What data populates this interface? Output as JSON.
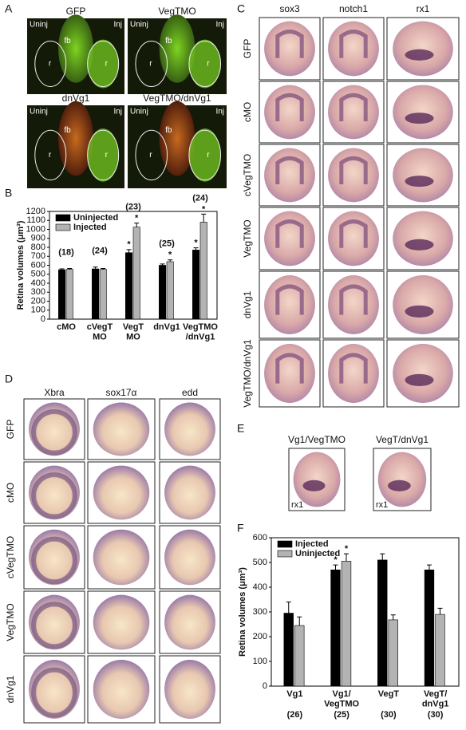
{
  "panel_labels": [
    "A",
    "B",
    "C",
    "D",
    "E",
    "F"
  ],
  "panel_a": {
    "titles": [
      "GFP",
      "VegTMO",
      "dnVg1",
      "VegTMO/dnVg1"
    ],
    "uninj": "Uninj",
    "inj": "Inj",
    "fb": "fb",
    "r": "r"
  },
  "panel_c": {
    "columns": [
      "sox3",
      "notch1",
      "rx1"
    ],
    "rows": [
      "GFP",
      "cMO",
      "cVegTMO",
      "VegTMO",
      "dnVg1",
      "VegTMO/dnVg1"
    ]
  },
  "panel_d": {
    "columns": [
      "Xbra",
      "sox17α",
      "edd"
    ],
    "rows": [
      "GFP",
      "cMO",
      "cVegTMO",
      "VegTMO",
      "dnVg1"
    ]
  },
  "panel_e": {
    "titles": [
      "Vg1/VegTMO",
      "VegT/dnVg1"
    ],
    "marker": "rx1"
  },
  "chart_data": [
    {
      "type": "bar",
      "ylabel": "Retina volumes (μm³)",
      "categories": [
        "cMO",
        "cVegT\nMO",
        "VegT\nMO",
        "dnVg1",
        "VegTMO\n/dnVg1"
      ],
      "counts": [
        "(18)",
        "(24)",
        "(23)",
        "(25)",
        "(24)"
      ],
      "series": [
        {
          "name": "Uninjected",
          "color": "#000000",
          "values": [
            550,
            560,
            740,
            600,
            770
          ],
          "errors": [
            10,
            20,
            35,
            15,
            25
          ],
          "stars": [
            null,
            null,
            "*",
            null,
            "*"
          ]
        },
        {
          "name": "Injected",
          "color": "#b3b3b3",
          "values": [
            555,
            555,
            1025,
            640,
            1080
          ],
          "errors": [
            10,
            10,
            45,
            20,
            90
          ],
          "stars": [
            null,
            null,
            "*",
            "*",
            "*"
          ]
        }
      ],
      "ylim": [
        0,
        1200
      ],
      "yticks": [
        0,
        100,
        200,
        300,
        400,
        500,
        600,
        700,
        800,
        900,
        1000,
        1100,
        1200
      ],
      "legend": "upper left"
    },
    {
      "type": "bar",
      "ylabel": "Retina volumes (μm³)",
      "categories": [
        "Vg1",
        "Vg1/\nVegTMO",
        "VegT",
        "VegT/\ndnVg1"
      ],
      "counts": [
        "(26)",
        "(25)",
        "(30)",
        "(30)"
      ],
      "series": [
        {
          "name": "Injected",
          "color": "#000000",
          "values": [
            295,
            470,
            510,
            470
          ],
          "errors": [
            45,
            20,
            25,
            20
          ],
          "stars": [
            null,
            "*",
            null,
            null
          ]
        },
        {
          "name": "Uninjected",
          "color": "#b3b3b3",
          "values": [
            245,
            505,
            268,
            290
          ],
          "errors": [
            35,
            30,
            20,
            25
          ],
          "stars": [
            null,
            "*",
            null,
            null
          ]
        }
      ],
      "ylim": [
        0,
        600
      ],
      "yticks": [
        0,
        100,
        200,
        300,
        400,
        500,
        600
      ],
      "legend": "upper left"
    }
  ]
}
